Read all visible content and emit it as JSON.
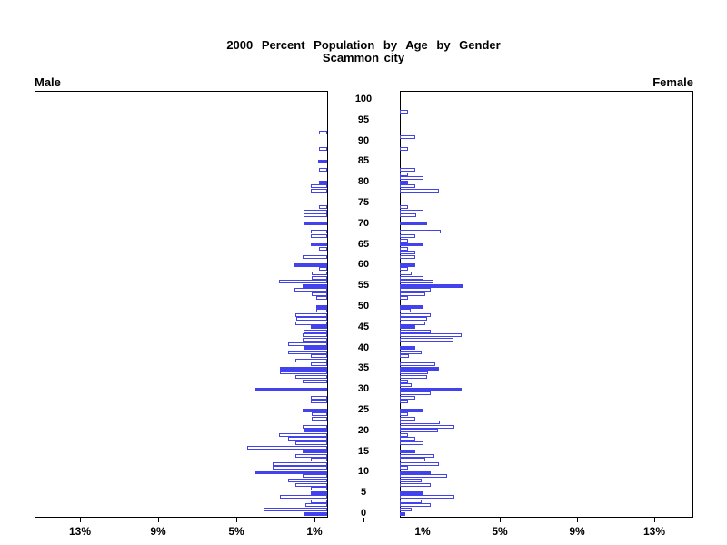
{
  "title": {
    "line1": "2000 Percent Population by Age by Gender",
    "line2": "Scammon city"
  },
  "panel_labels": {
    "male": "Male",
    "female": "Female"
  },
  "colors": {
    "bar_blue": "#4343ee",
    "axis_black": "#000000",
    "background": "#ffffff"
  },
  "axis": {
    "x_tick_values": [
      1,
      5,
      9,
      13
    ],
    "x_tick_labels": [
      "1%",
      "5%",
      "9%",
      "13%"
    ],
    "age_tick_step": 5,
    "age_tick_labels": [
      "0",
      "5",
      "10",
      "15",
      "20",
      "25",
      "30",
      "35",
      "40",
      "45",
      "50",
      "55",
      "60",
      "65",
      "70",
      "75",
      "80",
      "85",
      "90",
      "95",
      "100"
    ]
  },
  "chart_data": {
    "type": "bar",
    "subtype": "population-pyramid",
    "title": "2000 Percent Population by Age by Gender",
    "subtitle": "Scammon city",
    "xlabel": "percent of population (ticks at 1%, 5%, 9%, 13%)",
    "ylabel": "age in single years, 0 to 100",
    "xlim_percent": [
      0,
      15
    ],
    "age_range": [
      0,
      100
    ],
    "legend": "bars at ages that are multiples of 5 are drawn solid blue; all other ages are hollow (white fill, blue outline)",
    "hollow_exceptions": {
      "Female": [
        20
      ]
    },
    "series": [
      {
        "name": "Male",
        "side": "left",
        "values_by_age": [
          1.2,
          3.25,
          1.1,
          0.85,
          2.4,
          0.86,
          0.85,
          1.65,
          2.0,
          1.25,
          3.67,
          2.8,
          2.8,
          0.86,
          1.64,
          1.25,
          4.1,
          1.64,
          2.0,
          2.47,
          1.2,
          1.25,
          0,
          0.8,
          0.8,
          1.25,
          0,
          0.82,
          0.86,
          0,
          3.67,
          0,
          1.25,
          1.64,
          2.4,
          2.44,
          0.82,
          1.64,
          0.82,
          2.0,
          1.2,
          2.0,
          1.25,
          1.25,
          1.2,
          0.82,
          1.65,
          1.6,
          1.65,
          0.56,
          0.56,
          0,
          0.56,
          0.8,
          1.68,
          1.25,
          2.45,
          0.8,
          0.8,
          0.4,
          1.68,
          0,
          1.25,
          0,
          0.4,
          0.86,
          0,
          0.82,
          0.82,
          0,
          1.2,
          0,
          1.2,
          1.2,
          0.4,
          0,
          0,
          0,
          0.82,
          0.82,
          0.43,
          0,
          0,
          0.43,
          0,
          0.45,
          0,
          0,
          0.43,
          0,
          0,
          0,
          0.43,
          0,
          0,
          0,
          0,
          0,
          0,
          0,
          0
        ]
      },
      {
        "name": "Female",
        "side": "right",
        "values_by_age": [
          0.3,
          0.6,
          1.6,
          1.1,
          2.8,
          1.2,
          0,
          1.6,
          1.1,
          2.4,
          1.6,
          0.4,
          2.0,
          1.3,
          1.76,
          0.8,
          0,
          1.2,
          0.8,
          0.4,
          1.95,
          2.8,
          2.05,
          0.8,
          0.4,
          1.2,
          0,
          0.4,
          0.8,
          1.6,
          3.15,
          0.6,
          0.4,
          1.4,
          1.45,
          2.0,
          1.8,
          0,
          0.45,
          1.1,
          0.8,
          0,
          2.76,
          3.15,
          1.6,
          0.8,
          1.3,
          1.4,
          1.6,
          0.57,
          1.2,
          0,
          0.4,
          1.3,
          1.6,
          3.2,
          1.7,
          1.2,
          0.6,
          0.4,
          0.8,
          0,
          0.8,
          0.8,
          0.4,
          1.2,
          0.4,
          0.8,
          2.1,
          0,
          1.4,
          0,
          0.85,
          1.2,
          0.4,
          0,
          0,
          0,
          2.0,
          0.8,
          0.4,
          1.2,
          0.4,
          0.8,
          0,
          0,
          0,
          0,
          0.4,
          0,
          0,
          0.8,
          0,
          0,
          0,
          0,
          0,
          0.4,
          0,
          0,
          0
        ]
      }
    ]
  }
}
